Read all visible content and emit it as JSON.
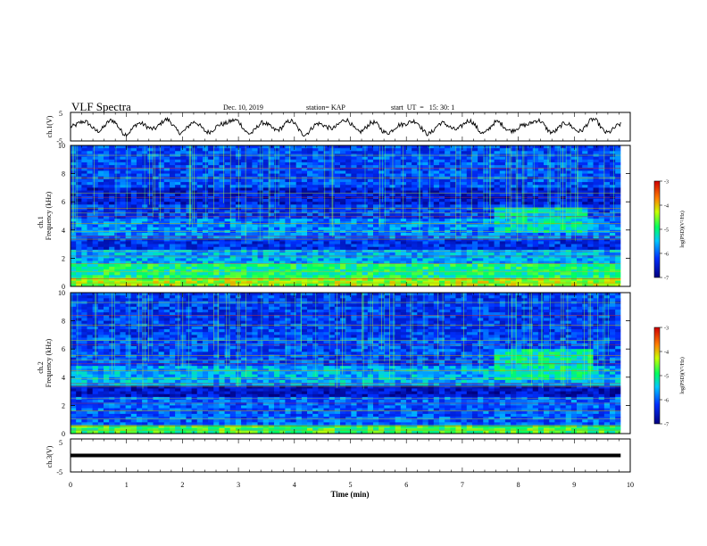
{
  "header": {
    "title": "VLF Spectra",
    "date": "Dec. 10, 2019",
    "station": "station= KAP",
    "start": "start  UT  =   15: 30: 1"
  },
  "chart_data": [
    {
      "type": "line",
      "panel": "ch1-waveform",
      "ylabel": "ch.1(V)",
      "ylim": [
        -5,
        5
      ],
      "yticks": [
        "5",
        "-5"
      ],
      "x_range": [
        0,
        9.83
      ],
      "series_style": "noisy waveform oscillating between about -3 and 3 V",
      "approx_values": [
        0,
        1.8,
        -1.5,
        2.2,
        -2.6,
        1.2,
        -0.8,
        2.5,
        -2.1,
        1.6,
        -1.9,
        0.9,
        2.3,
        -2.4,
        1.4,
        -1.2,
        2.0,
        -2.7,
        1.1,
        -0.6,
        2.4,
        -1.8,
        1.5,
        -2.2,
        0.7,
        1.9,
        -2.5,
        1.3,
        -1.0,
        2.1,
        -2.3,
        1.7,
        -1.4,
        0.5,
        2.2,
        -2.0,
        1.2,
        -1.6,
        2.6,
        -2.1,
        0.8
      ]
    },
    {
      "type": "heatmap",
      "panel": "ch1-spectrogram",
      "ylabel": "ch.1",
      "ylabel2": "Frequency  (kHz)",
      "ylim": [
        0,
        10
      ],
      "yticks": [
        "0",
        "2",
        "4",
        "6",
        "8",
        "10"
      ],
      "x_range": [
        0,
        9.83
      ],
      "colorbar": {
        "label": "log(PSD)(V²/Hz)",
        "ticks": [
          "-3",
          "-4",
          "-5",
          "-6",
          "-7"
        ],
        "range": [
          -7,
          -3
        ]
      },
      "bands": [
        {
          "f": [
            0.0,
            0.6
          ],
          "level": -4.4
        },
        {
          "f": [
            0.6,
            1.7
          ],
          "level": -5.0
        },
        {
          "f": [
            1.7,
            2.6
          ],
          "level": -5.6
        },
        {
          "f": [
            2.6,
            3.4
          ],
          "level": -6.3
        },
        {
          "f": [
            3.4,
            4.8
          ],
          "level": -5.8
        },
        {
          "f": [
            4.8,
            5.8
          ],
          "level": -6.2
        },
        {
          "f": [
            5.8,
            7.0
          ],
          "level": -6.5
        },
        {
          "f": [
            7.0,
            10.0
          ],
          "level": -6.1
        }
      ],
      "features": [
        {
          "kind": "patch",
          "t": [
            7.6,
            9.2
          ],
          "f": [
            3.9,
            5.5
          ],
          "level": -5.3
        }
      ]
    },
    {
      "type": "heatmap",
      "panel": "ch2-spectrogram",
      "ylabel": "ch.2",
      "ylabel2": "Frequency  (kHz)",
      "ylim": [
        0,
        10
      ],
      "yticks": [
        "0",
        "2",
        "4",
        "6",
        "8",
        "10"
      ],
      "x_range": [
        0,
        9.83
      ],
      "colorbar": {
        "label": "log(PSD)(V²/Hz)",
        "ticks": [
          "-3",
          "-4",
          "-5",
          "-6",
          "-7"
        ],
        "range": [
          -7,
          -3
        ]
      },
      "bands": [
        {
          "f": [
            0.0,
            0.6
          ],
          "level": -4.8
        },
        {
          "f": [
            0.6,
            2.6
          ],
          "level": -6.0
        },
        {
          "f": [
            2.6,
            3.4
          ],
          "level": -6.6
        },
        {
          "f": [
            3.4,
            4.8
          ],
          "level": -5.6
        },
        {
          "f": [
            4.8,
            6.8
          ],
          "level": -6.1
        },
        {
          "f": [
            6.8,
            10.0
          ],
          "level": -6.2
        }
      ],
      "features": [
        {
          "kind": "patch",
          "t": [
            7.6,
            9.3
          ],
          "f": [
            3.8,
            6.0
          ],
          "level": -5.2
        }
      ]
    },
    {
      "type": "line",
      "panel": "ch3-waveform",
      "ylabel": "ch.3(V)",
      "ylim": [
        -5,
        5
      ],
      "yticks": [
        "5",
        "-5"
      ],
      "x_range": [
        0,
        9.83
      ],
      "constant_value": 0
    }
  ],
  "xaxis": {
    "label": "Time  (min)",
    "ticks": [
      "0",
      "1",
      "2",
      "3",
      "4",
      "5",
      "6",
      "7",
      "8",
      "9",
      "10"
    ]
  }
}
